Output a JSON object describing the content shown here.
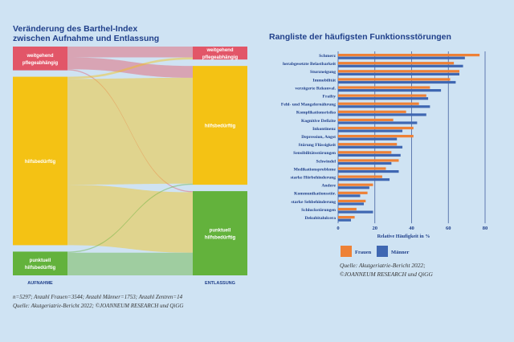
{
  "left_title": [
    "Veränderung des Barthel-Index",
    "zwischen Aufnahme und Entlassung"
  ],
  "right_title": "Rangliste der häufigsten Funktionsstörungen",
  "footnote": "n=5297; Anzahl Frauen=3544; Anzahl Männer=1753; Anzahl Zentren=14",
  "source_left": "Quelle: Akutgeriatrie-Bericht 2022; ©JOANNEUM RESEARCH und QiGG",
  "source_right": [
    "Quelle: Akutgeriatrie-Bericht 2022;",
    "©JOANNEUM RESEARCH und QiGG"
  ],
  "colors": {
    "weitgehend": "#e25668",
    "hilfsbeduerftig": "#f4c214",
    "punktuell": "#63b23c",
    "frauen": "#ee8136",
    "maenner": "#3f67b2"
  },
  "chart_data": [
    {
      "type": "sankey",
      "title": "Veränderung des Barthel-Index zwischen Aufnahme und Entlassung",
      "axis_labels": [
        "AUFNAHME",
        "ENTLASSUNG"
      ],
      "nodes_left": [
        {
          "id": "wl",
          "label": [
            "weitgehend",
            "pflegeabhängig"
          ],
          "share": 0.11
        },
        {
          "id": "hl",
          "label": [
            "hilfsbedürftig"
          ],
          "share": 0.78
        },
        {
          "id": "pl",
          "label": [
            "punktuell",
            "hilfsbedürftig"
          ],
          "share": 0.11
        }
      ],
      "nodes_right": [
        {
          "id": "wr",
          "label": [
            "weitgehend",
            "pflegeabhängig"
          ],
          "share": 0.06
        },
        {
          "id": "hr",
          "label": [
            "hilfsbedürftig"
          ],
          "share": 0.55
        },
        {
          "id": "pr",
          "label": [
            "punktuell",
            "hilfsbedürftig"
          ],
          "share": 0.39
        }
      ],
      "flows": [
        {
          "from": "wl",
          "to": "wr",
          "value": 0.05
        },
        {
          "from": "wl",
          "to": "hr",
          "value": 0.055
        },
        {
          "from": "wl",
          "to": "pr",
          "value": 0.005
        },
        {
          "from": "hl",
          "to": "wr",
          "value": 0.01
        },
        {
          "from": "hl",
          "to": "hr",
          "value": 0.49
        },
        {
          "from": "hl",
          "to": "pr",
          "value": 0.28
        },
        {
          "from": "pl",
          "to": "hr",
          "value": 0.005
        },
        {
          "from": "pl",
          "to": "pr",
          "value": 0.105
        }
      ]
    },
    {
      "type": "bar",
      "orientation": "horizontal",
      "title": "Rangliste der häufigsten Funktionsstörungen",
      "xlabel": "Relative Häufigkeit in %",
      "xlim": [
        0,
        80
      ],
      "xticks": [
        0,
        20,
        40,
        60,
        80
      ],
      "grid": true,
      "categories": [
        "Schmerz",
        "herabgesetzte Belastbarkeit",
        "Sturzneigung",
        "Immobilität",
        "verzögerte Rekonval.",
        "Frailty",
        "Fehl- und Mangelernährung",
        "Komplikationsrisiko",
        "Kognitive Defizite",
        "Inkontinenz",
        "Depression, Angst",
        "Störung Flüssigkeit",
        "Sensibilitätsstörungen",
        "Schwindel",
        "Medikationsprobleme",
        "starke Hörbehinderung",
        "Andere",
        "Kommunikationsstör.",
        "starke Sehbehinderung",
        "Schluckstörungen",
        "Dekubitalulcera"
      ],
      "series": [
        {
          "name": "Frauen",
          "values": [
            77,
            63,
            66,
            61,
            50,
            48,
            44,
            37,
            30,
            41,
            41,
            32,
            29,
            33,
            26,
            24,
            19,
            16,
            15,
            10,
            9
          ]
        },
        {
          "name": "Männer",
          "values": [
            69,
            68,
            66,
            64,
            56,
            49,
            50,
            48,
            43,
            35,
            32,
            35,
            34,
            29,
            33,
            28,
            17,
            12,
            14,
            19,
            7
          ]
        }
      ],
      "legend": "bottom-left"
    }
  ]
}
